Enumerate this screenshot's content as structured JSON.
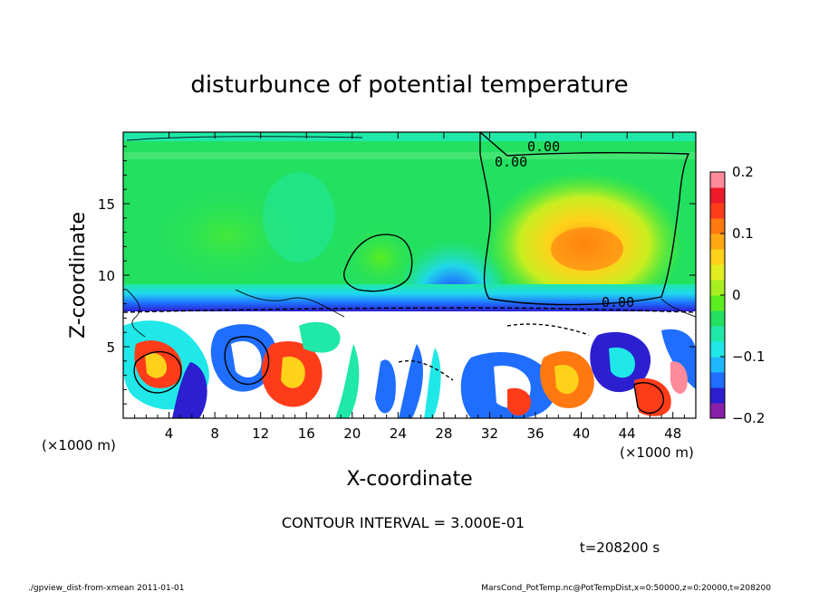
{
  "chart_data": {
    "type": "heatmap",
    "title": "disturbunce of potential temperature",
    "xlabel": "X-coordinate",
    "ylabel": "Z-coordinate",
    "x_unit_left": "(×1000 m)",
    "x_unit_right": "(×1000 m)",
    "xlim": [
      0,
      50
    ],
    "ylim": [
      0,
      20
    ],
    "xticks": [
      "4",
      "8",
      "12",
      "16",
      "20",
      "24",
      "28",
      "32",
      "36",
      "40",
      "44",
      "48"
    ],
    "yticks": [
      "5",
      "10",
      "15"
    ],
    "colorbar": {
      "ticks": [
        "0.2",
        "0.1",
        "0",
        "−0.1",
        "−0.2"
      ],
      "range": [
        -0.2,
        0.2
      ],
      "colors": [
        "#8a1fa8",
        "#2b1fd0",
        "#1f6eff",
        "#1fb8ff",
        "#20e8e8",
        "#20e8a8",
        "#22e060",
        "#5aee20",
        "#a6ee20",
        "#e2ee20",
        "#ffd21a",
        "#ffa812",
        "#ff7810",
        "#ff3c1a",
        "#ee1a2a",
        "#ff8a9a"
      ]
    },
    "contour_labels": [
      "0.00",
      "0.00",
      "0.00",
      "0.00",
      "0.00"
    ],
    "contour_interval": "CONTOUR INTERVAL = 3.000E-01",
    "time": "t=208200 s",
    "footer_left": "./gpview_dist-from-xmean  2011-01-01",
    "footer_right": "MarsCond_PotTemp.nc@PotTempDist,x=0:50000,z=0:20000,t=208200"
  }
}
